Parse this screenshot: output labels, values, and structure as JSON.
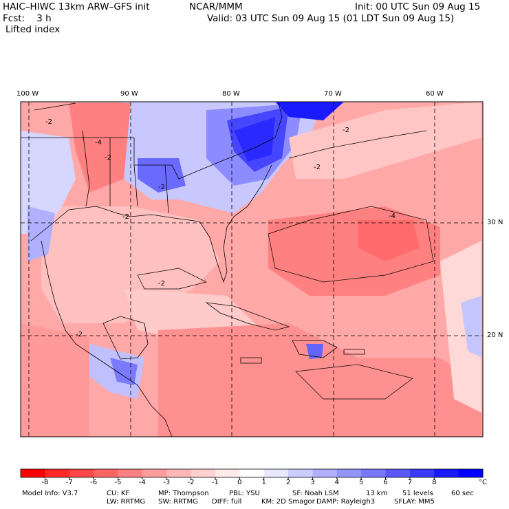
{
  "header": {
    "model": "HAIC–HIWC 13km ARW–GFS init",
    "org": "NCAR/MMM",
    "init": "Init: 00 UTC Sun 09 Aug 15",
    "fcst": "Fcst:    3 h",
    "valid": "Valid: 03 UTC Sun 09 Aug 15 (01 LDT Sun 09 Aug 15)",
    "field": "Lifted index"
  },
  "axes": {
    "lon_labels": [
      "100 W",
      "90 W",
      "80 W",
      "70 W",
      "60 W"
    ],
    "lat_labels": [
      "30 N",
      "20 N"
    ]
  },
  "contour_labels": [
    "-2",
    "-4",
    "-2",
    "-2",
    "-2",
    "-2",
    "-2",
    "-4",
    "-2",
    "-2"
  ],
  "colorbar": {
    "ticks": [
      "-8",
      "-7",
      "-6",
      "-5",
      "-4",
      "-3",
      "-2",
      "-1",
      "0",
      "1",
      "2",
      "3",
      "4",
      "5",
      "6",
      "7",
      "8"
    ],
    "unit": "°C",
    "colors": [
      "#ff0000",
      "#ff2828",
      "#ff4747",
      "#ff6464",
      "#ff8080",
      "#ff9c9c",
      "#ffb6b6",
      "#ffd0d0",
      "#ffeaea",
      "#ffffff",
      "#e8e8ff",
      "#ccccff",
      "#b0b0ff",
      "#9494ff",
      "#7878ff",
      "#5959ff",
      "#3a3aff",
      "#1a1aff",
      "#0000ff"
    ]
  },
  "footer": {
    "line1": [
      "Model Info: V3.7",
      "CU: KF",
      "MP: Thompson",
      "PBL: YSU",
      "SF: Noah LSM",
      "13 km",
      "51 levels",
      "60 sec"
    ],
    "line2": [
      "LW: RRTMG",
      "SW: RRTMG",
      "DIFF: full",
      "KM: 2D Smagor",
      "DAMP: Rayleigh3",
      "SFLAY: MM5"
    ]
  }
}
